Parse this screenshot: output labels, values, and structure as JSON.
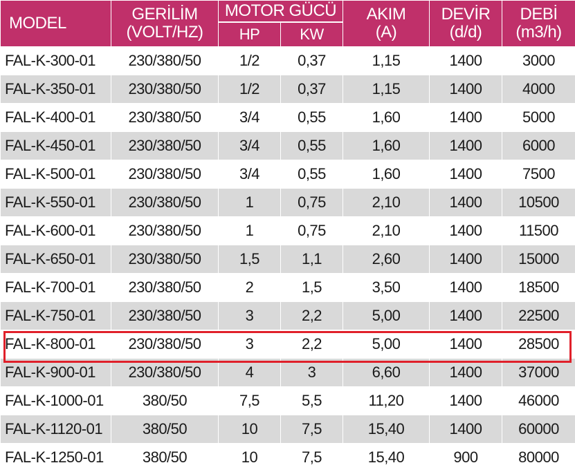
{
  "header": {
    "model": "MODEL",
    "gerilim": {
      "line1": "GERİLİM",
      "line2": "(VOLT/HZ)"
    },
    "motor_gucu": "MOTOR GÜCÜ",
    "hp": "HP",
    "kw": "KW",
    "akim": {
      "line1": "AKIM",
      "line2": "(A)"
    },
    "devir": {
      "line1": "DEVİR",
      "line2": "(d/d)"
    },
    "debi": {
      "line1": "DEBİ",
      "line2": "(m3/h)"
    }
  },
  "rows": [
    {
      "model": "FAL-K-300-01",
      "gerilim": "230/380/50",
      "hp": "1/2",
      "kw": "0,37",
      "akim": "1,15",
      "devir": "1400",
      "debi": "3000"
    },
    {
      "model": "FAL-K-350-01",
      "gerilim": "230/380/50",
      "hp": "1/2",
      "kw": "0,37",
      "akim": "1,15",
      "devir": "1400",
      "debi": "4000"
    },
    {
      "model": "FAL-K-400-01",
      "gerilim": "230/380/50",
      "hp": "3/4",
      "kw": "0,55",
      "akim": "1,60",
      "devir": "1400",
      "debi": "5000"
    },
    {
      "model": "FAL-K-450-01",
      "gerilim": "230/380/50",
      "hp": "3/4",
      "kw": "0,55",
      "akim": "1,60",
      "devir": "1400",
      "debi": "6000"
    },
    {
      "model": "FAL-K-500-01",
      "gerilim": "230/380/50",
      "hp": "3/4",
      "kw": "0,55",
      "akim": "1,60",
      "devir": "1400",
      "debi": "7500"
    },
    {
      "model": "FAL-K-550-01",
      "gerilim": "230/380/50",
      "hp": "1",
      "kw": "0,75",
      "akim": "2,10",
      "devir": "1400",
      "debi": "10500"
    },
    {
      "model": "FAL-K-600-01",
      "gerilim": "230/380/50",
      "hp": "1",
      "kw": "0,75",
      "akim": "2,10",
      "devir": "1400",
      "debi": "11500"
    },
    {
      "model": "FAL-K-650-01",
      "gerilim": "230/380/50",
      "hp": "1,5",
      "kw": "1,1",
      "akim": "2,60",
      "devir": "1400",
      "debi": "15000"
    },
    {
      "model": "FAL-K-700-01",
      "gerilim": "230/380/50",
      "hp": "2",
      "kw": "1,5",
      "akim": "3,50",
      "devir": "1400",
      "debi": "18500"
    },
    {
      "model": "FAL-K-750-01",
      "gerilim": "230/380/50",
      "hp": "3",
      "kw": "2,2",
      "akim": "5,00",
      "devir": "1400",
      "debi": "22500"
    },
    {
      "model": "FAL-K-800-01",
      "gerilim": "230/380/50",
      "hp": "3",
      "kw": "2,2",
      "akim": "5,00",
      "devir": "1400",
      "debi": "28500"
    },
    {
      "model": "FAL-K-900-01",
      "gerilim": "230/380/50",
      "hp": "4",
      "kw": "3",
      "akim": "6,60",
      "devir": "1400",
      "debi": "37000"
    },
    {
      "model": "FAL-K-1000-01",
      "gerilim": "380/50",
      "hp": "7,5",
      "kw": "5,5",
      "akim": "11,20",
      "devir": "1400",
      "debi": "46000"
    },
    {
      "model": "FAL-K-1120-01",
      "gerilim": "380/50",
      "hp": "10",
      "kw": "7,5",
      "akim": "15,40",
      "devir": "1400",
      "debi": "60000"
    },
    {
      "model": "FAL-K-1250-01",
      "gerilim": "380/50",
      "hp": "10",
      "kw": "7,5",
      "akim": "15,40",
      "devir": "900",
      "debi": "80000"
    }
  ],
  "highlighted_row": "FAL-K-800-01",
  "colors": {
    "header_bg": "#c0306a",
    "row_alt_bg": "#d9d9d9",
    "highlight_border": "#e0202a"
  }
}
